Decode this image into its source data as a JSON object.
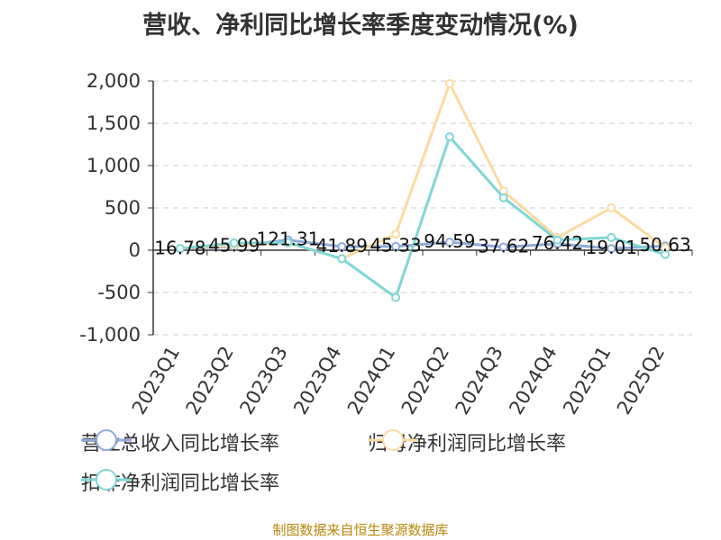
{
  "title": "营收、净利同比增长率季度变动情况(%)",
  "footer": "制图数据来自恒生聚源数据库",
  "colors": {
    "revenue": "#8faadc",
    "net_profit": "#fbdba3",
    "deducted_profit": "#7fd6d6",
    "grid": "#cccccc",
    "axis": "#333333",
    "footer": "#b8860b"
  },
  "chart_data": {
    "type": "line",
    "title": "营收、净利同比增长率季度变动情况(%)",
    "categories": [
      "2023Q1",
      "2023Q2",
      "2023Q3",
      "2023Q4",
      "2024Q1",
      "2024Q2",
      "2024Q3",
      "2024Q4",
      "2025Q1",
      "2025Q2"
    ],
    "ylim": [
      -1000,
      2000
    ],
    "yticks": [
      -1000,
      -500,
      0,
      500,
      1000,
      1500,
      2000
    ],
    "ytick_labels": [
      "-1,000",
      "-500",
      "0",
      "500",
      "1,000",
      "1,500",
      "2,000"
    ],
    "grid": true,
    "legend_position": "bottom",
    "series": [
      {
        "name": "营业总收入同比增长率",
        "color": "#8faadc",
        "values": [
          16.78,
          45.99,
          121.31,
          41.89,
          45.33,
          94.59,
          37.62,
          76.42,
          19.01,
          50.63
        ],
        "labels": [
          "16.78",
          "45.99",
          "121.31",
          "41.89",
          "45.33",
          "94.59",
          "37.62",
          "76.42",
          "19.01",
          "50.63"
        ]
      },
      {
        "name": "归母净利润同比增长率",
        "color": "#fbdba3",
        "values": [
          20,
          60,
          85,
          -100,
          190,
          1970,
          700,
          150,
          500,
          30
        ]
      },
      {
        "name": "扣非净利润同比增长率",
        "color": "#7fd6d6",
        "values": [
          20,
          85,
          90,
          -100,
          -560,
          1340,
          620,
          120,
          150,
          -50
        ]
      }
    ]
  }
}
